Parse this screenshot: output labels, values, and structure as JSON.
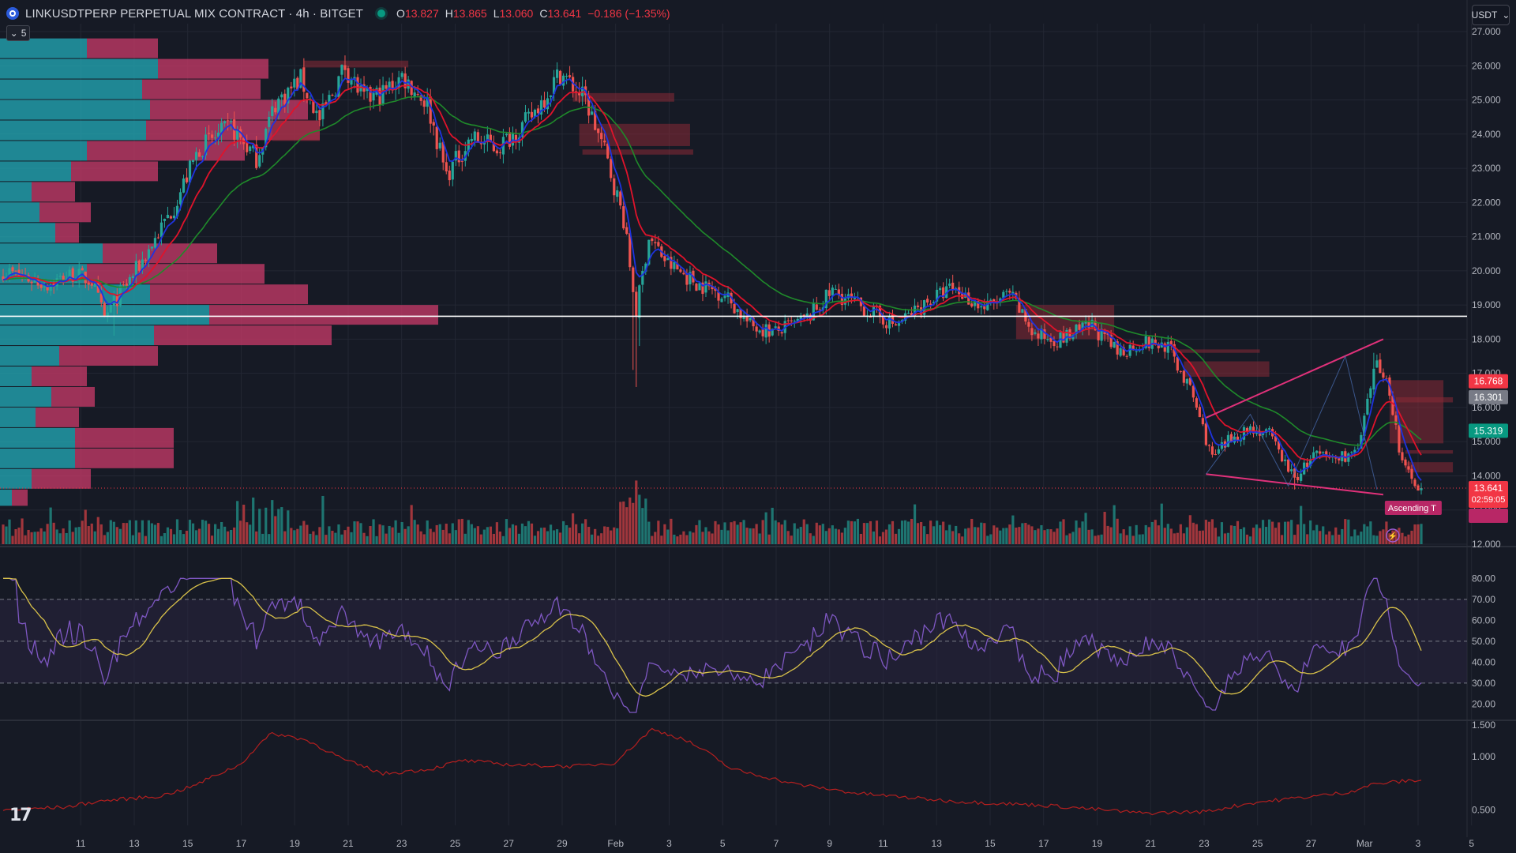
{
  "header": {
    "title": "LINKUSDTPERP PERPETUAL MIX CONTRACT · 4h · BITGET",
    "ohlc": {
      "o_label": "O",
      "o": "13.827",
      "h_label": "H",
      "h": "13.865",
      "l_label": "L",
      "l": "13.060",
      "c_label": "C",
      "c": "13.641",
      "change": "−0.186 (−1.35%)"
    },
    "collapse_count": "5",
    "currency": "USDT"
  },
  "price_tags": {
    "tag_red": "16.768",
    "tag_gray": "16.301",
    "tag_green": "15.319",
    "tag_last": "13.641",
    "tag_countdown": "02:59:05",
    "pattern_label": "Ascending T"
  },
  "colors": {
    "bg": "#161a25",
    "up": "#26a69a",
    "down": "#ef5350",
    "ema_fast": "#1e33e0",
    "ema_mid": "#e0132b",
    "ema_slow": "#1f8a2a",
    "rsi": "#7e57c2",
    "rsi_ma": "#d9c24a",
    "vol_up": "#1f7f7a",
    "vol_down": "#b03a3f",
    "vp_up": "#22a7b3",
    "vp_down": "#c43a66",
    "pattern": "#e0317a",
    "third": "#b31f1f"
  },
  "chart_data": [
    {
      "type": "candlestick",
      "title": "LINKUSDTPERP PERPETUAL MIX CONTRACT · 4h · BITGET",
      "x_tick_labels": [
        "11",
        "13",
        "15",
        "17",
        "19",
        "21",
        "23",
        "25",
        "27",
        "29",
        "Feb",
        "3",
        "5",
        "7",
        "9",
        "11",
        "13",
        "15",
        "17",
        "19",
        "21",
        "23",
        "25",
        "27",
        "Mar",
        "3",
        "5"
      ],
      "ylim": [
        12.0,
        27.0
      ],
      "y_ticks": [
        "12.000",
        "13.000",
        "14.000",
        "15.000",
        "16.000",
        "17.000",
        "18.000",
        "19.000",
        "20.000",
        "21.000",
        "22.000",
        "23.000",
        "24.000",
        "25.000",
        "26.000",
        "27.000"
      ],
      "horizontal_line": 18.67,
      "close_anchors": [
        {
          "i": 0,
          "v": 20.0
        },
        {
          "i": 14,
          "v": 19.6
        },
        {
          "i": 22,
          "v": 19.9
        },
        {
          "i": 28,
          "v": 19.7
        },
        {
          "i": 32,
          "v": 18.6
        },
        {
          "i": 36,
          "v": 19.2
        },
        {
          "i": 44,
          "v": 20.3
        },
        {
          "i": 54,
          "v": 21.9
        },
        {
          "i": 62,
          "v": 23.6
        },
        {
          "i": 72,
          "v": 24.2
        },
        {
          "i": 80,
          "v": 23.3
        },
        {
          "i": 86,
          "v": 24.9
        },
        {
          "i": 94,
          "v": 25.6
        },
        {
          "i": 100,
          "v": 24.4
        },
        {
          "i": 108,
          "v": 26.0
        },
        {
          "i": 114,
          "v": 25.0
        },
        {
          "i": 120,
          "v": 25.2
        },
        {
          "i": 126,
          "v": 25.7
        },
        {
          "i": 134,
          "v": 24.9
        },
        {
          "i": 140,
          "v": 22.8
        },
        {
          "i": 148,
          "v": 23.9
        },
        {
          "i": 156,
          "v": 23.6
        },
        {
          "i": 166,
          "v": 24.4
        },
        {
          "i": 176,
          "v": 25.8
        },
        {
          "i": 184,
          "v": 25.0
        },
        {
          "i": 190,
          "v": 23.5
        },
        {
          "i": 196,
          "v": 21.5
        },
        {
          "i": 200,
          "v": 18.8
        },
        {
          "i": 204,
          "v": 21.0
        },
        {
          "i": 210,
          "v": 20.2
        },
        {
          "i": 220,
          "v": 19.6
        },
        {
          "i": 228,
          "v": 19.3
        },
        {
          "i": 236,
          "v": 18.4
        },
        {
          "i": 244,
          "v": 18.2
        },
        {
          "i": 254,
          "v": 18.6
        },
        {
          "i": 262,
          "v": 19.4
        },
        {
          "i": 272,
          "v": 18.9
        },
        {
          "i": 282,
          "v": 18.4
        },
        {
          "i": 292,
          "v": 19.1
        },
        {
          "i": 300,
          "v": 19.5
        },
        {
          "i": 310,
          "v": 18.9
        },
        {
          "i": 318,
          "v": 19.3
        },
        {
          "i": 326,
          "v": 18.1
        },
        {
          "i": 334,
          "v": 18.0
        },
        {
          "i": 344,
          "v": 18.4
        },
        {
          "i": 352,
          "v": 17.6
        },
        {
          "i": 360,
          "v": 17.9
        },
        {
          "i": 368,
          "v": 17.8
        },
        {
          "i": 376,
          "v": 16.3
        },
        {
          "i": 382,
          "v": 14.5
        },
        {
          "i": 388,
          "v": 15.1
        },
        {
          "i": 394,
          "v": 15.4
        },
        {
          "i": 400,
          "v": 15.2
        },
        {
          "i": 408,
          "v": 13.9
        },
        {
          "i": 414,
          "v": 14.6
        },
        {
          "i": 420,
          "v": 14.5
        },
        {
          "i": 428,
          "v": 14.7
        },
        {
          "i": 434,
          "v": 17.4
        },
        {
          "i": 438,
          "v": 16.5
        },
        {
          "i": 442,
          "v": 14.3
        },
        {
          "i": 448,
          "v": 13.64
        }
      ],
      "spikes": [
        {
          "i": 35,
          "low": 18.1
        },
        {
          "i": 199,
          "low": 17.1
        },
        {
          "i": 200,
          "low": 16.6
        },
        {
          "i": 201,
          "low": 17.8
        },
        {
          "i": 408,
          "low": 13.6
        },
        {
          "i": 433,
          "high": 17.6
        }
      ],
      "series": [
        {
          "name": "EMA fast",
          "color_key": "ema_fast"
        },
        {
          "name": "EMA mid",
          "color_key": "ema_mid"
        },
        {
          "name": "EMA slow",
          "color_key": "ema_slow"
        }
      ],
      "boxes": [
        {
          "x0": 95,
          "x1": 128,
          "y0": 26.15,
          "y1": 25.95
        },
        {
          "x0": 180,
          "x1": 212,
          "y0": 25.2,
          "y1": 24.95
        },
        {
          "x0": 182,
          "x1": 217,
          "y0": 24.3,
          "y1": 23.65
        },
        {
          "x0": 183,
          "x1": 218,
          "y0": 23.55,
          "y1": 23.4
        },
        {
          "x0": 320,
          "x1": 351,
          "y0": 19.0,
          "y1": 18.0
        },
        {
          "x0": 369,
          "x1": 397,
          "y0": 17.7,
          "y1": 17.6
        },
        {
          "x0": 373,
          "x1": 400,
          "y0": 17.35,
          "y1": 16.9
        },
        {
          "x0": 438,
          "x1": 455,
          "y0": 16.8,
          "y1": 14.95
        },
        {
          "x0": 440,
          "x1": 458,
          "y0": 16.3,
          "y1": 16.15
        },
        {
          "x0": 443,
          "x1": 458,
          "y0": 14.75,
          "y1": 14.65
        },
        {
          "x0": 443,
          "x1": 458,
          "y0": 14.4,
          "y1": 14.1
        },
        {
          "x0": 85,
          "x1": 100,
          "y0": 24.4,
          "y1": 23.8
        }
      ],
      "pattern": {
        "upper": [
          [
            380,
            15.7
          ],
          [
            436,
            18.0
          ]
        ],
        "lower": [
          [
            380,
            14.05
          ],
          [
            436,
            13.45
          ]
        ],
        "zigzag": [
          [
            380,
            14.05
          ],
          [
            394,
            15.8
          ],
          [
            406,
            13.7
          ],
          [
            424,
            17.5
          ],
          [
            434,
            13.6
          ]
        ]
      },
      "volume_profile": [
        {
          "price_top": 26.8,
          "price_bot": 26.2,
          "up": 110,
          "down": 90
        },
        {
          "price_top": 26.2,
          "price_bot": 25.6,
          "up": 200,
          "down": 140
        },
        {
          "price_top": 25.6,
          "price_bot": 25.0,
          "up": 180,
          "down": 150
        },
        {
          "price_top": 25.0,
          "price_bot": 24.4,
          "up": 190,
          "down": 200
        },
        {
          "price_top": 24.4,
          "price_bot": 23.8,
          "up": 185,
          "down": 220
        },
        {
          "price_top": 23.8,
          "price_bot": 23.2,
          "up": 110,
          "down": 200
        },
        {
          "price_top": 23.2,
          "price_bot": 22.6,
          "up": 90,
          "down": 110
        },
        {
          "price_top": 22.6,
          "price_bot": 22.0,
          "up": 40,
          "down": 55
        },
        {
          "price_top": 22.0,
          "price_bot": 21.4,
          "up": 50,
          "down": 65
        },
        {
          "price_top": 21.4,
          "price_bot": 20.8,
          "up": 70,
          "down": 30
        },
        {
          "price_top": 20.8,
          "price_bot": 20.2,
          "up": 130,
          "down": 145
        },
        {
          "price_top": 20.2,
          "price_bot": 19.6,
          "up": 110,
          "down": 225
        },
        {
          "price_top": 19.6,
          "price_bot": 19.0,
          "up": 190,
          "down": 200
        },
        {
          "price_top": 19.0,
          "price_bot": 18.4,
          "up": 265,
          "down": 290
        },
        {
          "price_top": 18.4,
          "price_bot": 17.8,
          "up": 195,
          "down": 225
        },
        {
          "price_top": 17.8,
          "price_bot": 17.2,
          "up": 75,
          "down": 125
        },
        {
          "price_top": 17.2,
          "price_bot": 16.6,
          "up": 40,
          "down": 70
        },
        {
          "price_top": 16.6,
          "price_bot": 16.0,
          "up": 65,
          "down": 55
        },
        {
          "price_top": 16.0,
          "price_bot": 15.4,
          "up": 45,
          "down": 55
        },
        {
          "price_top": 15.4,
          "price_bot": 14.8,
          "up": 95,
          "down": 125
        },
        {
          "price_top": 14.8,
          "price_bot": 14.2,
          "up": 95,
          "down": 125
        },
        {
          "price_top": 14.2,
          "price_bot": 13.6,
          "up": 40,
          "down": 75
        },
        {
          "price_top": 13.6,
          "price_bot": 13.1,
          "up": 15,
          "down": 20
        }
      ]
    },
    {
      "type": "line",
      "title": "",
      "ylim": [
        13.0,
        82.0
      ],
      "y_ticks": [
        "20.00",
        "30.00",
        "40.00",
        "50.00",
        "60.00",
        "70.00",
        "80.00"
      ],
      "bands": [
        30,
        50,
        70
      ],
      "series": [
        {
          "color_key": "rsi"
        },
        {
          "color_key": "rsi_ma"
        }
      ]
    },
    {
      "type": "line",
      "title": "",
      "scale": "log",
      "ylim": [
        0.41,
        1.55
      ],
      "y_ticks": [
        "0.500",
        "1.000",
        "1.500"
      ],
      "anchors": [
        {
          "i": 0,
          "v": 0.5
        },
        {
          "i": 20,
          "v": 0.52
        },
        {
          "i": 30,
          "v": 0.56
        },
        {
          "i": 50,
          "v": 0.6
        },
        {
          "i": 60,
          "v": 0.68
        },
        {
          "i": 75,
          "v": 0.9
        },
        {
          "i": 85,
          "v": 1.35
        },
        {
          "i": 95,
          "v": 1.25
        },
        {
          "i": 108,
          "v": 0.95
        },
        {
          "i": 120,
          "v": 0.8
        },
        {
          "i": 135,
          "v": 0.85
        },
        {
          "i": 145,
          "v": 0.95
        },
        {
          "i": 160,
          "v": 0.9
        },
        {
          "i": 180,
          "v": 0.88
        },
        {
          "i": 193,
          "v": 0.92
        },
        {
          "i": 198,
          "v": 1.1
        },
        {
          "i": 205,
          "v": 1.42
        },
        {
          "i": 215,
          "v": 1.25
        },
        {
          "i": 230,
          "v": 0.85
        },
        {
          "i": 250,
          "v": 0.7
        },
        {
          "i": 270,
          "v": 0.62
        },
        {
          "i": 300,
          "v": 0.56
        },
        {
          "i": 330,
          "v": 0.53
        },
        {
          "i": 360,
          "v": 0.48
        },
        {
          "i": 380,
          "v": 0.49
        },
        {
          "i": 395,
          "v": 0.55
        },
        {
          "i": 415,
          "v": 0.6
        },
        {
          "i": 425,
          "v": 0.63
        },
        {
          "i": 433,
          "v": 0.7
        },
        {
          "i": 440,
          "v": 0.72
        },
        {
          "i": 448,
          "v": 0.74
        }
      ],
      "series": [
        {
          "color_key": "third"
        }
      ]
    }
  ]
}
